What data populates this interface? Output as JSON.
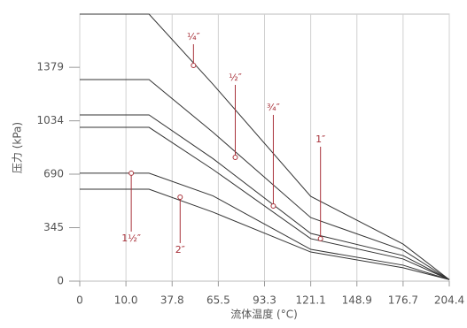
{
  "chart_data": {
    "type": "line",
    "x_label": "流体温度 (°C)",
    "y_label": "压力 (kPa)",
    "xlim": [
      0,
      204.4
    ],
    "xticks": [
      0,
      {
        "value": 10,
        "label": "10.0"
      },
      37.8,
      65.5,
      93.3,
      121.1,
      148.9,
      176.7,
      204.4
    ],
    "ylim": [
      0,
      1722
    ],
    "yticks": [
      0,
      345,
      690,
      1034,
      1379
    ],
    "grid": true,
    "x": [
      0,
      23.9,
      62.3,
      121.1,
      176.7,
      204.4
    ],
    "series": [
      {
        "color": "#333333",
        "values": [
          1722,
          1722,
          1270,
          547,
          239,
          10
        ]
      },
      {
        "color": "#333333",
        "values": [
          1300,
          1300,
          960,
          410,
          200,
          10
        ]
      },
      {
        "color": "#333333",
        "values": [
          1072,
          1072,
          790,
          308,
          165,
          10
        ]
      },
      {
        "color": "#333333",
        "values": [
          992,
          992,
          720,
          274,
          143,
          10
        ]
      },
      {
        "color": "#333333",
        "values": [
          696,
          696,
          550,
          205,
          103,
          10
        ]
      },
      {
        "color": "#333333",
        "values": [
          593,
          593,
          445,
          188,
          86,
          10
        ]
      }
    ],
    "annotation_color": "#a8323a",
    "annotations": [
      {
        "text": "¼″",
        "x": 50.6,
        "y": 1391
      },
      {
        "text": "½″",
        "x": 75.7,
        "y": 798
      },
      {
        "text": "¾″",
        "x": 98.6,
        "y": 485
      },
      {
        "text": "1″",
        "x": 127,
        "y": 274
      },
      {
        "text": "1½″",
        "x": 13.2,
        "y": 696
      },
      {
        "text": "2″",
        "x": 42.6,
        "y": 542
      }
    ]
  }
}
